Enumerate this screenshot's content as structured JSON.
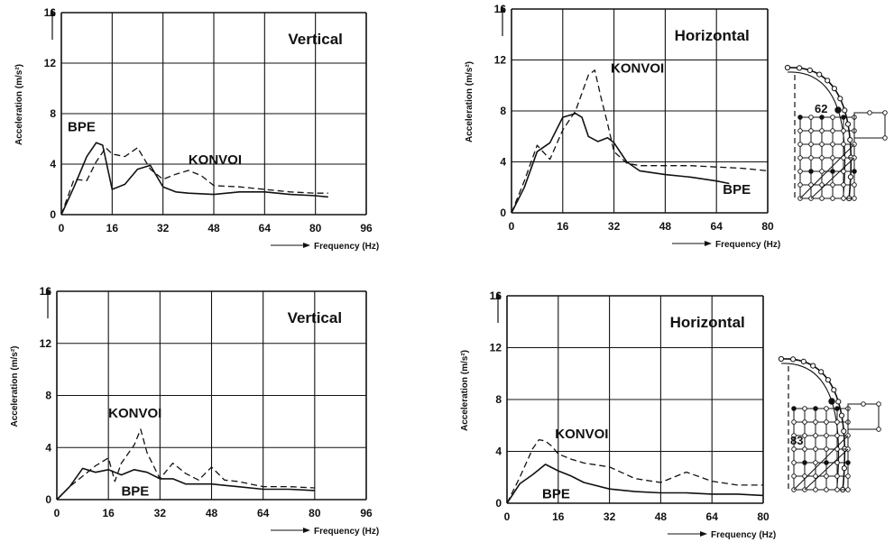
{
  "chart_data": [
    {
      "type": "line",
      "title": "Vertical",
      "xlabel": "Frequency (Hz)",
      "ylabel": "Acceleration (m/s²)",
      "xlim": [
        0,
        96
      ],
      "ylim": [
        0,
        16
      ],
      "xticks": [
        0,
        16,
        32,
        48,
        64,
        80,
        96
      ],
      "yticks": [
        0,
        4,
        8,
        12,
        16
      ],
      "grid": true,
      "annotations": [
        {
          "text": "BPE",
          "x": 2,
          "y": 6.6
        },
        {
          "text": "KONVOI",
          "x": 40,
          "y": 4
        }
      ],
      "series": [
        {
          "name": "BPE",
          "style": "solid",
          "x": [
            0,
            4,
            8,
            11,
            13,
            16,
            20,
            24,
            28,
            32,
            36,
            40,
            48,
            56,
            64,
            72,
            80,
            84
          ],
          "y": [
            0,
            2.2,
            4.6,
            5.7,
            5.5,
            2,
            2.4,
            3.6,
            3.9,
            2.2,
            1.8,
            1.7,
            1.6,
            1.8,
            1.8,
            1.6,
            1.5,
            1.4
          ]
        },
        {
          "name": "KONVOI",
          "style": "dashed",
          "x": [
            0,
            4,
            8,
            11,
            14,
            16,
            20,
            24,
            28,
            32,
            36,
            40,
            44,
            48,
            56,
            64,
            72,
            80,
            84
          ],
          "y": [
            0,
            2.8,
            2.7,
            4.2,
            5.3,
            4.8,
            4.6,
            5.3,
            3.6,
            2.8,
            3.2,
            3.5,
            3.1,
            2.3,
            2.2,
            2,
            1.8,
            1.7,
            1.7
          ]
        }
      ]
    },
    {
      "type": "line",
      "title": "Horizontal",
      "xlabel": "Frequency (Hz)",
      "ylabel": "Acceleration (m/s²)",
      "xlim": [
        0,
        80
      ],
      "ylim": [
        0,
        16
      ],
      "xticks": [
        0,
        16,
        32,
        48,
        64,
        80
      ],
      "yticks": [
        0,
        4,
        8,
        12,
        16
      ],
      "grid": true,
      "node_label": "62",
      "annotations": [
        {
          "text": "KONVOI",
          "x": 31,
          "y": 11
        },
        {
          "text": "BPE",
          "x": 66,
          "y": 1.5
        }
      ],
      "series": [
        {
          "name": "BPE",
          "style": "solid",
          "x": [
            0,
            4,
            8,
            12,
            16,
            20,
            22,
            24,
            27,
            30,
            32,
            36,
            40,
            48,
            56,
            64,
            68
          ],
          "y": [
            0,
            2,
            4.8,
            5.5,
            7.5,
            7.8,
            7.5,
            6,
            5.6,
            5.9,
            5.5,
            4,
            3.3,
            3,
            2.8,
            2.5,
            2.3
          ]
        },
        {
          "name": "KONVOI",
          "style": "dashed",
          "x": [
            0,
            4,
            8,
            12,
            16,
            20,
            24,
            26,
            28,
            30,
            32,
            36,
            40,
            48,
            56,
            64,
            72,
            80
          ],
          "y": [
            0,
            2.5,
            5.3,
            4.2,
            6.5,
            8,
            10.8,
            11.2,
            9,
            7,
            4.8,
            3.9,
            3.7,
            3.7,
            3.7,
            3.6,
            3.5,
            3.3
          ]
        }
      ]
    },
    {
      "type": "line",
      "title": "Vertical",
      "xlabel": "Frequency (Hz)",
      "ylabel": "Acceleration (m/s²)",
      "xlim": [
        0,
        96
      ],
      "ylim": [
        0,
        16
      ],
      "xticks": [
        0,
        16,
        32,
        48,
        64,
        80,
        96
      ],
      "yticks": [
        0,
        4,
        8,
        12,
        16
      ],
      "grid": true,
      "annotations": [
        {
          "text": "KONVOI",
          "x": 16,
          "y": 6.3
        },
        {
          "text": "BPE",
          "x": 20,
          "y": 0.3
        }
      ],
      "series": [
        {
          "name": "BPE",
          "style": "solid",
          "x": [
            0,
            4,
            8,
            12,
            16,
            20,
            24,
            28,
            32,
            36,
            40,
            48,
            56,
            64,
            72,
            80
          ],
          "y": [
            0,
            1,
            2.4,
            2.1,
            2.3,
            1.9,
            2.3,
            2.1,
            1.6,
            1.6,
            1.2,
            1.2,
            1,
            0.8,
            0.8,
            0.7
          ]
        },
        {
          "name": "KONVOI",
          "style": "dashed",
          "x": [
            0,
            4,
            8,
            12,
            16,
            18,
            20,
            24,
            26,
            28,
            32,
            36,
            40,
            44,
            48,
            52,
            56,
            64,
            72,
            80
          ],
          "y": [
            0,
            1,
            1.8,
            2.6,
            3.2,
            1.4,
            2.8,
            4.2,
            5.4,
            3.6,
            1.6,
            2.8,
            2,
            1.5,
            2.5,
            1.5,
            1.4,
            1,
            1,
            0.9
          ]
        }
      ]
    },
    {
      "type": "line",
      "title": "Horizontal",
      "xlabel": "Frequency (Hz)",
      "ylabel": "Acceleration (m/s²)",
      "xlim": [
        0,
        80
      ],
      "ylim": [
        0,
        16
      ],
      "xticks": [
        0,
        16,
        32,
        48,
        64,
        80
      ],
      "yticks": [
        0,
        4,
        8,
        12,
        16
      ],
      "grid": true,
      "node_label": "83",
      "annotations": [
        {
          "text": "KONVOI",
          "x": 15,
          "y": 5
        },
        {
          "text": "BPE",
          "x": 11,
          "y": 0.4
        }
      ],
      "series": [
        {
          "name": "BPE",
          "style": "solid",
          "x": [
            0,
            4,
            8,
            12,
            16,
            20,
            24,
            32,
            40,
            48,
            56,
            64,
            72,
            80
          ],
          "y": [
            0,
            1.5,
            2.2,
            3,
            2.5,
            2.1,
            1.6,
            1.1,
            0.9,
            0.8,
            0.8,
            0.7,
            0.7,
            0.6
          ]
        },
        {
          "name": "KONVOI",
          "style": "dashed",
          "x": [
            0,
            4,
            8,
            10,
            12,
            14,
            16,
            20,
            24,
            32,
            40,
            48,
            56,
            64,
            72,
            80
          ],
          "y": [
            0,
            2,
            4.2,
            4.9,
            4.8,
            4.4,
            3.8,
            3.4,
            3.1,
            2.8,
            1.9,
            1.6,
            2.4,
            1.7,
            1.4,
            1.4
          ]
        }
      ]
    }
  ]
}
